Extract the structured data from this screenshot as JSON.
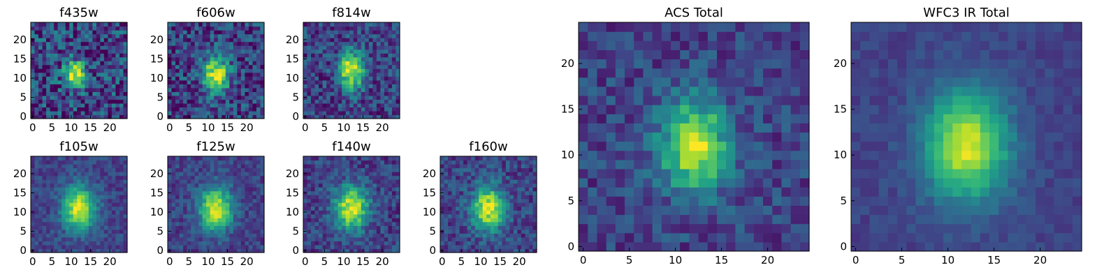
{
  "figure": {
    "colormap": "viridis",
    "frame_color": "#000000",
    "background": "#ffffff"
  },
  "chart_data": [
    {
      "type": "heatmap",
      "title": "f435w",
      "x_ticks": [
        "0",
        "5",
        "10",
        "15",
        "20"
      ],
      "y_ticks": [
        "0",
        "5",
        "10",
        "15",
        "20"
      ],
      "xlim": [
        0,
        24
      ],
      "ylim": [
        0,
        24
      ],
      "grid_size": 25,
      "peak": {
        "x": 11,
        "y": 11,
        "sx": 2.0,
        "sy": 2.5
      },
      "noise": 0.55,
      "seed": 11
    },
    {
      "type": "heatmap",
      "title": "f606w",
      "x_ticks": [
        "0",
        "5",
        "10",
        "15",
        "20"
      ],
      "y_ticks": [
        "0",
        "5",
        "10",
        "15",
        "20"
      ],
      "xlim": [
        0,
        24
      ],
      "ylim": [
        0,
        24
      ],
      "grid_size": 25,
      "peak": {
        "x": 12,
        "y": 11,
        "sx": 2.3,
        "sy": 3.5
      },
      "noise": 0.45,
      "seed": 22
    },
    {
      "type": "heatmap",
      "title": "f814w",
      "x_ticks": [
        "0",
        "5",
        "10",
        "15",
        "20"
      ],
      "y_ticks": [
        "0",
        "5",
        "10",
        "15",
        "20"
      ],
      "xlim": [
        0,
        24
      ],
      "ylim": [
        0,
        24
      ],
      "grid_size": 25,
      "peak": {
        "x": 12,
        "y": 12,
        "sx": 2.3,
        "sy": 3.5
      },
      "noise": 0.4,
      "seed": 33
    },
    {
      "type": "heatmap",
      "title": "f105w",
      "x_ticks": [
        "0",
        "5",
        "10",
        "15",
        "20"
      ],
      "y_ticks": [
        "0",
        "5",
        "10",
        "15",
        "20"
      ],
      "xlim": [
        0,
        24
      ],
      "ylim": [
        0,
        24
      ],
      "grid_size": 25,
      "peak": {
        "x": 12,
        "y": 11,
        "sx": 3.0,
        "sy": 4.0
      },
      "noise": 0.22,
      "seed": 44
    },
    {
      "type": "heatmap",
      "title": "f125w",
      "x_ticks": [
        "0",
        "5",
        "10",
        "15",
        "20"
      ],
      "y_ticks": [
        "0",
        "5",
        "10",
        "15",
        "20"
      ],
      "xlim": [
        0,
        24
      ],
      "ylim": [
        0,
        24
      ],
      "grid_size": 25,
      "peak": {
        "x": 12,
        "y": 11,
        "sx": 3.0,
        "sy": 4.0
      },
      "noise": 0.24,
      "seed": 55
    },
    {
      "type": "heatmap",
      "title": "f140w",
      "x_ticks": [
        "0",
        "5",
        "10",
        "15",
        "20"
      ],
      "y_ticks": [
        "0",
        "5",
        "10",
        "15",
        "20"
      ],
      "xlim": [
        0,
        24
      ],
      "ylim": [
        0,
        24
      ],
      "grid_size": 25,
      "peak": {
        "x": 12,
        "y": 11,
        "sx": 3.0,
        "sy": 4.0
      },
      "noise": 0.3,
      "seed": 66
    },
    {
      "type": "heatmap",
      "title": "f160w",
      "x_ticks": [
        "0",
        "5",
        "10",
        "15",
        "20"
      ],
      "y_ticks": [
        "0",
        "5",
        "10",
        "15",
        "20"
      ],
      "xlim": [
        0,
        24
      ],
      "ylim": [
        0,
        24
      ],
      "grid_size": 25,
      "peak": {
        "x": 12,
        "y": 11,
        "sx": 3.0,
        "sy": 4.0
      },
      "noise": 0.3,
      "seed": 77
    },
    {
      "type": "heatmap",
      "title": "ACS Total",
      "x_ticks": [
        "0",
        "5",
        "10",
        "15",
        "20"
      ],
      "y_ticks": [
        "0",
        "5",
        "10",
        "15",
        "20"
      ],
      "xlim": [
        0,
        24
      ],
      "ylim": [
        0,
        24
      ],
      "grid_size": 25,
      "peak": {
        "x": 12,
        "y": 11,
        "sx": 2.5,
        "sy": 3.5
      },
      "noise": 0.28,
      "seed": 88
    },
    {
      "type": "heatmap",
      "title": "WFC3 IR Total",
      "x_ticks": [
        "0",
        "5",
        "10",
        "15",
        "20"
      ],
      "y_ticks": [
        "0",
        "5",
        "10",
        "15",
        "20"
      ],
      "xlim": [
        0,
        24
      ],
      "ylim": [
        0,
        24
      ],
      "grid_size": 25,
      "peak": {
        "x": 12,
        "y": 11,
        "sx": 3.2,
        "sy": 4.2
      },
      "noise": 0.12,
      "seed": 99
    }
  ]
}
